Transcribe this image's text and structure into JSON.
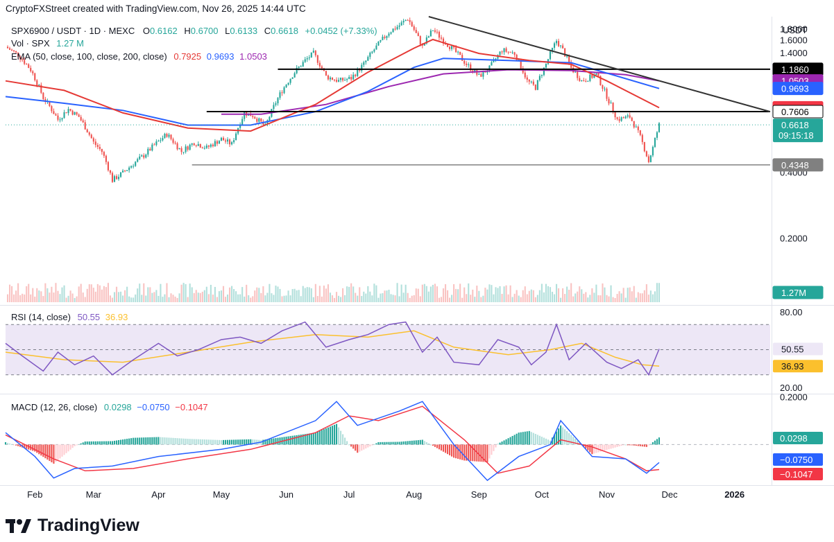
{
  "credit": "CryptoFXStreet created with TradingView.com, Nov 26, 2025 14:44 UTC",
  "symbol": {
    "title": "SPX6900 / USDT · 1D · MEXC",
    "o_label": "O",
    "o": "0.6162",
    "h_label": "H",
    "h": "0.6700",
    "l_label": "L",
    "l": "0.6133",
    "c_label": "C",
    "c": "0.6618",
    "change": "+0.0452 (+7.33%)"
  },
  "volume_legend": {
    "label": "Vol · SPX",
    "value": "1.27 M"
  },
  "ema_legend": {
    "label": "EMA (50, close, 100, close, 200, close)",
    "ema50": "0.7925",
    "ema100": "0.9693",
    "ema200": "1.0503"
  },
  "rsi_legend": {
    "label": "RSI (14, close)",
    "rsi": "50.55",
    "ma": "36.93"
  },
  "macd_legend": {
    "label": "MACD (12, 26, close)",
    "hist": "0.0298",
    "macd": "−0.0750",
    "signal": "−0.1047"
  },
  "currency": "USDT",
  "logo": {
    "text": "TradingView",
    "mark": "TV"
  },
  "colors": {
    "up": "#26a69a",
    "down": "#ef5350",
    "ema50": "#e53935",
    "ema100": "#2962ff",
    "ema200": "#9c27b0",
    "rsi": "#7e57c2",
    "rsi_ma": "#fbc02d",
    "rsi_band": "#ede7f6",
    "macd": "#2962ff",
    "signal": "#f23645",
    "level_black": "#000000",
    "level_gray": "#808080",
    "trendline": "#333333"
  },
  "chart_data": {
    "type": "candlestick",
    "x_range": [
      "2025-01-18",
      "2026-01-18"
    ],
    "x_ticks": [
      {
        "date": "2025-02-01",
        "label": "Feb"
      },
      {
        "date": "2025-03-01",
        "label": "Mar"
      },
      {
        "date": "2025-04-01",
        "label": "Apr"
      },
      {
        "date": "2025-05-01",
        "label": "May"
      },
      {
        "date": "2025-06-01",
        "label": "Jun"
      },
      {
        "date": "2025-07-01",
        "label": "Jul"
      },
      {
        "date": "2025-08-01",
        "label": "Aug"
      },
      {
        "date": "2025-09-01",
        "label": "Sep"
      },
      {
        "date": "2025-10-01",
        "label": "Oct"
      },
      {
        "date": "2025-11-01",
        "label": "Nov"
      },
      {
        "date": "2025-12-01",
        "label": "Dec"
      },
      {
        "date": "2026-01-01",
        "label": "2026"
      }
    ],
    "price_axis": {
      "ticks": [
        "1.8000",
        "1.6000",
        "1.4000",
        "0.4000",
        "0.2000"
      ],
      "tick_values": [
        1.8,
        1.6,
        1.4,
        0.4,
        0.2
      ],
      "ylim": [
        0.1,
        2.06
      ]
    },
    "price_path": [
      [
        "2025-01-18",
        1.5
      ],
      [
        "2025-01-24",
        1.38
      ],
      [
        "2025-01-30",
        1.18
      ],
      [
        "2025-02-05",
        0.88
      ],
      [
        "2025-02-12",
        0.7
      ],
      [
        "2025-02-17",
        0.78
      ],
      [
        "2025-02-22",
        0.72
      ],
      [
        "2025-03-01",
        0.55
      ],
      [
        "2025-03-05",
        0.5
      ],
      [
        "2025-03-10",
        0.37
      ],
      [
        "2025-03-15",
        0.4
      ],
      [
        "2025-03-25",
        0.48
      ],
      [
        "2025-04-05",
        0.6
      ],
      [
        "2025-04-12",
        0.5
      ],
      [
        "2025-04-18",
        0.55
      ],
      [
        "2025-04-24",
        0.52
      ],
      [
        "2025-05-01",
        0.57
      ],
      [
        "2025-05-06",
        0.54
      ],
      [
        "2025-05-12",
        0.75
      ],
      [
        "2025-05-16",
        0.73
      ],
      [
        "2025-05-22",
        0.65
      ],
      [
        "2025-05-30",
        0.95
      ],
      [
        "2025-06-05",
        1.15
      ],
      [
        "2025-06-10",
        1.3
      ],
      [
        "2025-06-14",
        1.4
      ],
      [
        "2025-06-20",
        1.1
      ],
      [
        "2025-06-26",
        1.05
      ],
      [
        "2025-07-02",
        1.08
      ],
      [
        "2025-07-08",
        1.25
      ],
      [
        "2025-07-14",
        1.5
      ],
      [
        "2025-07-20",
        1.75
      ],
      [
        "2025-07-25",
        1.88
      ],
      [
        "2025-07-29",
        2.02
      ],
      [
        "2025-08-02",
        1.72
      ],
      [
        "2025-08-05",
        1.5
      ],
      [
        "2025-08-10",
        1.8
      ],
      [
        "2025-08-15",
        1.6
      ],
      [
        "2025-08-20",
        1.45
      ],
      [
        "2025-08-26",
        1.25
      ],
      [
        "2025-09-01",
        1.1
      ],
      [
        "2025-09-06",
        1.2
      ],
      [
        "2025-09-12",
        1.45
      ],
      [
        "2025-09-18",
        1.4
      ],
      [
        "2025-09-24",
        1.05
      ],
      [
        "2025-09-28",
        0.98
      ],
      [
        "2025-10-03",
        1.25
      ],
      [
        "2025-10-08",
        1.6
      ],
      [
        "2025-10-11",
        1.45
      ],
      [
        "2025-10-15",
        1.2
      ],
      [
        "2025-10-20",
        1.05
      ],
      [
        "2025-10-27",
        1.12
      ],
      [
        "2025-11-02",
        0.85
      ],
      [
        "2025-11-06",
        0.7
      ],
      [
        "2025-11-12",
        0.72
      ],
      [
        "2025-11-17",
        0.58
      ],
      [
        "2025-11-21",
        0.45
      ],
      [
        "2025-11-23",
        0.52
      ],
      [
        "2025-11-26",
        0.6618
      ]
    ],
    "ema50_path": [
      [
        "2025-01-18",
        1.05
      ],
      [
        "2025-02-15",
        0.95
      ],
      [
        "2025-03-15",
        0.75
      ],
      [
        "2025-04-15",
        0.64
      ],
      [
        "2025-05-15",
        0.62
      ],
      [
        "2025-06-15",
        0.82
      ],
      [
        "2025-07-10",
        1.15
      ],
      [
        "2025-08-01",
        1.48
      ],
      [
        "2025-08-10",
        1.62
      ],
      [
        "2025-09-01",
        1.4
      ],
      [
        "2025-09-25",
        1.3
      ],
      [
        "2025-10-15",
        1.25
      ],
      [
        "2025-11-01",
        1.05
      ],
      [
        "2025-11-26",
        0.7925
      ]
    ],
    "ema100_path": [
      [
        "2025-01-18",
        0.89
      ],
      [
        "2025-02-15",
        0.83
      ],
      [
        "2025-03-15",
        0.77
      ],
      [
        "2025-04-15",
        0.66
      ],
      [
        "2025-05-15",
        0.66
      ],
      [
        "2025-06-15",
        0.76
      ],
      [
        "2025-07-10",
        0.94
      ],
      [
        "2025-08-01",
        1.21
      ],
      [
        "2025-08-15",
        1.33
      ],
      [
        "2025-09-15",
        1.3
      ],
      [
        "2025-10-15",
        1.27
      ],
      [
        "2025-11-01",
        1.14
      ],
      [
        "2025-11-26",
        0.9693
      ]
    ],
    "ema200_path": [
      [
        "2025-05-01",
        0.74
      ],
      [
        "2025-05-20",
        0.74
      ],
      [
        "2025-06-20",
        0.82
      ],
      [
        "2025-07-20",
        0.99
      ],
      [
        "2025-08-15",
        1.13
      ],
      [
        "2025-09-15",
        1.18
      ],
      [
        "2025-10-15",
        1.17
      ],
      [
        "2025-11-10",
        1.12
      ],
      [
        "2025-11-26",
        1.0503
      ]
    ],
    "levels": [
      {
        "name": "resistance",
        "value": 1.186,
        "label": "1.1860",
        "from": "2025-05-28",
        "color": "#000000"
      },
      {
        "name": "resistance",
        "value": 0.7606,
        "label": "0.7606",
        "from": "2025-04-24",
        "color": "#000000"
      },
      {
        "name": "support",
        "value": 0.4348,
        "label": "0.4348",
        "from": "2025-04-17",
        "color": "#808080"
      }
    ],
    "trendline": [
      [
        "2025-08-08",
        2.06
      ],
      [
        "2026-01-18",
        0.76
      ]
    ],
    "last_price": {
      "value": 0.6618,
      "label": "0.6618",
      "countdown": "09:15:18"
    },
    "price_tags": [
      {
        "label": "1.1860",
        "value": 1.186,
        "bg": "#000000",
        "fg": "#ffffff"
      },
      {
        "label": "1.0503",
        "value": 1.0503,
        "bg": "#9c27b0",
        "fg": "#ffffff"
      },
      {
        "label": "0.9693",
        "value": 0.9693,
        "bg": "#2962ff",
        "fg": "#ffffff"
      },
      {
        "label": "0.7925",
        "value": 0.7925,
        "bg": "#f23645",
        "fg": "#ffffff"
      },
      {
        "label": "0.7606",
        "value": 0.7606,
        "bg": "#ffffff",
        "fg": "#000000",
        "border": "#000000"
      },
      {
        "label": "0.4348",
        "value": 0.4348,
        "bg": "#808080",
        "fg": "#ffffff"
      },
      {
        "label": "1.27M",
        "value": 0.07,
        "bg": "#26a69a",
        "fg": "#ffffff"
      }
    ],
    "rsi": {
      "axis_ticks": [
        80,
        20
      ],
      "axis_labels": [
        "80.00",
        "20.00"
      ],
      "band": [
        70,
        30
      ],
      "mid": 50,
      "ylim": [
        15,
        85
      ],
      "path": [
        [
          "2025-01-18",
          55
        ],
        [
          "2025-01-26",
          45
        ],
        [
          "2025-02-05",
          33
        ],
        [
          "2025-02-12",
          48
        ],
        [
          "2025-02-20",
          38
        ],
        [
          "2025-03-01",
          45
        ],
        [
          "2025-03-10",
          30
        ],
        [
          "2025-03-20",
          42
        ],
        [
          "2025-04-01",
          55
        ],
        [
          "2025-04-10",
          45
        ],
        [
          "2025-04-20",
          50
        ],
        [
          "2025-05-01",
          58
        ],
        [
          "2025-05-10",
          60
        ],
        [
          "2025-05-20",
          55
        ],
        [
          "2025-05-30",
          65
        ],
        [
          "2025-06-10",
          72
        ],
        [
          "2025-06-20",
          52
        ],
        [
          "2025-07-01",
          58
        ],
        [
          "2025-07-10",
          62
        ],
        [
          "2025-07-20",
          70
        ],
        [
          "2025-07-28",
          72
        ],
        [
          "2025-08-05",
          48
        ],
        [
          "2025-08-12",
          60
        ],
        [
          "2025-08-20",
          40
        ],
        [
          "2025-09-01",
          38
        ],
        [
          "2025-09-10",
          58
        ],
        [
          "2025-09-20",
          52
        ],
        [
          "2025-09-26",
          38
        ],
        [
          "2025-10-03",
          48
        ],
        [
          "2025-10-08",
          70
        ],
        [
          "2025-10-14",
          42
        ],
        [
          "2025-10-22",
          55
        ],
        [
          "2025-11-01",
          40
        ],
        [
          "2025-11-08",
          35
        ],
        [
          "2025-11-16",
          42
        ],
        [
          "2025-11-21",
          30
        ],
        [
          "2025-11-26",
          50.55
        ]
      ],
      "ma_path": [
        [
          "2025-01-18",
          48
        ],
        [
          "2025-02-15",
          42
        ],
        [
          "2025-03-15",
          40
        ],
        [
          "2025-04-15",
          48
        ],
        [
          "2025-05-15",
          56
        ],
        [
          "2025-06-15",
          62
        ],
        [
          "2025-07-10",
          60
        ],
        [
          "2025-08-01",
          65
        ],
        [
          "2025-08-20",
          52
        ],
        [
          "2025-09-15",
          46
        ],
        [
          "2025-10-05",
          50
        ],
        [
          "2025-10-20",
          55
        ],
        [
          "2025-11-05",
          44
        ],
        [
          "2025-11-18",
          38
        ],
        [
          "2025-11-26",
          36.93
        ]
      ]
    },
    "macd": {
      "axis_ticks": [
        0.2
      ],
      "axis_labels": [
        "0.2000"
      ],
      "ylim": [
        -0.17,
        0.21
      ],
      "macd_path": [
        [
          "2025-01-18",
          0.05
        ],
        [
          "2025-02-01",
          -0.05
        ],
        [
          "2025-02-10",
          -0.14
        ],
        [
          "2025-02-20",
          -0.1
        ],
        [
          "2025-03-10",
          -0.09
        ],
        [
          "2025-04-01",
          -0.05
        ],
        [
          "2025-05-01",
          -0.02
        ],
        [
          "2025-05-20",
          0.01
        ],
        [
          "2025-06-15",
          0.1
        ],
        [
          "2025-06-25",
          0.18
        ],
        [
          "2025-07-05",
          0.08
        ],
        [
          "2025-07-25",
          0.14
        ],
        [
          "2025-08-05",
          0.18
        ],
        [
          "2025-08-20",
          0.0
        ],
        [
          "2025-09-05",
          -0.15
        ],
        [
          "2025-09-20",
          -0.05
        ],
        [
          "2025-10-05",
          0.0
        ],
        [
          "2025-10-10",
          0.1
        ],
        [
          "2025-10-25",
          -0.05
        ],
        [
          "2025-11-10",
          -0.06
        ],
        [
          "2025-11-20",
          -0.12
        ],
        [
          "2025-11-26",
          -0.075
        ]
      ],
      "signal_path": [
        [
          "2025-01-18",
          0.04
        ],
        [
          "2025-02-10",
          -0.06
        ],
        [
          "2025-02-25",
          -0.11
        ],
        [
          "2025-03-20",
          -0.1
        ],
        [
          "2025-04-15",
          -0.06
        ],
        [
          "2025-05-15",
          -0.02
        ],
        [
          "2025-06-15",
          0.05
        ],
        [
          "2025-07-01",
          0.12
        ],
        [
          "2025-07-15",
          0.1
        ],
        [
          "2025-08-05",
          0.16
        ],
        [
          "2025-08-25",
          0.02
        ],
        [
          "2025-09-10",
          -0.12
        ],
        [
          "2025-09-25",
          -0.09
        ],
        [
          "2025-10-10",
          0.02
        ],
        [
          "2025-10-25",
          -0.01
        ],
        [
          "2025-11-10",
          -0.06
        ],
        [
          "2025-11-20",
          -0.11
        ],
        [
          "2025-11-26",
          -0.1047
        ]
      ]
    }
  }
}
